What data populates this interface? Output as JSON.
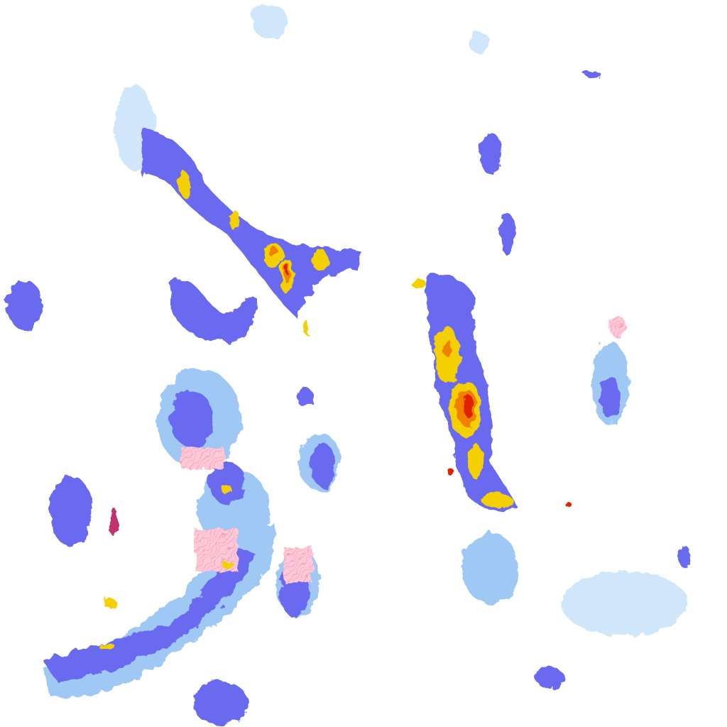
{
  "map": {
    "type": "precipitation-radar-tile",
    "intensity_colors": {
      "very_light": "#cfe6fb",
      "light": "#9fc8f5",
      "moderate": "#6a6af0",
      "heavy": "#3a3ae0",
      "very_heavy": "#f5d000",
      "intense": "#f08000",
      "extreme": "#e02000",
      "mixed_precip": "#ffc8d8",
      "mixed_precip_dark": "#c03070"
    }
  }
}
